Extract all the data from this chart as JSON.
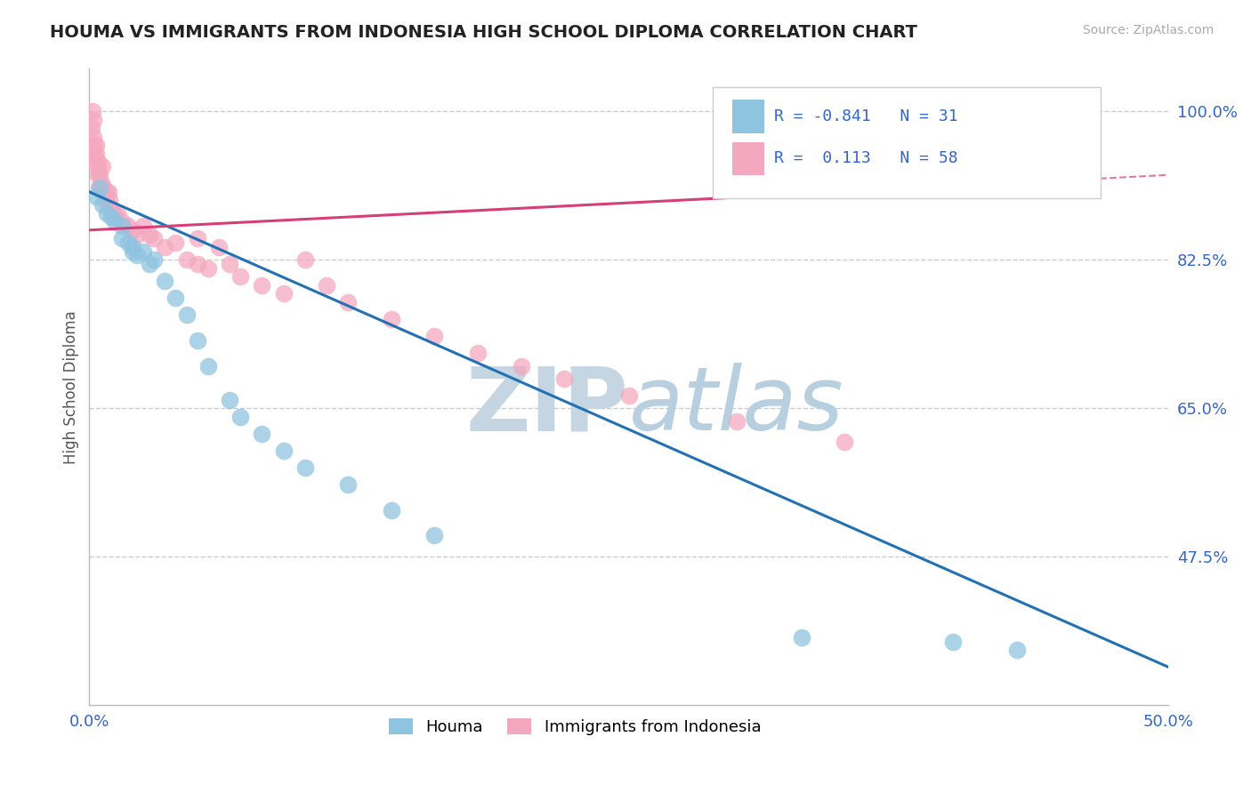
{
  "title": "HOUMA VS IMMIGRANTS FROM INDONESIA HIGH SCHOOL DIPLOMA CORRELATION CHART",
  "source": "Source: ZipAtlas.com",
  "ylabel": "High School Diploma",
  "xlim": [
    0.0,
    50.0
  ],
  "ylim": [
    30.0,
    105.0
  ],
  "ytick_positions": [
    47.5,
    65.0,
    82.5,
    100.0
  ],
  "ytick_labels": [
    "47.5%",
    "65.0%",
    "82.5%",
    "100.0%"
  ],
  "houma_R": -0.841,
  "houma_N": 31,
  "indo_R": 0.113,
  "indo_N": 58,
  "houma_color": "#8fc4e0",
  "indo_color": "#f4a8bf",
  "houma_line_color": "#2171b5",
  "indo_line_color": "#d63e7a",
  "watermark_zip": "ZIP",
  "watermark_atlas": "atlas",
  "watermark_color_zip": "#d0dce8",
  "watermark_color_atlas": "#b8cfe0",
  "houma_x": [
    0.3,
    0.5,
    0.6,
    0.8,
    1.0,
    1.2,
    1.5,
    1.5,
    1.8,
    2.0,
    2.0,
    2.2,
    2.5,
    2.8,
    3.0,
    3.5,
    4.0,
    4.5,
    5.0,
    5.5,
    6.5,
    7.0,
    8.0,
    9.0,
    10.0,
    12.0,
    14.0,
    16.0,
    33.0,
    40.0,
    43.0
  ],
  "houma_y": [
    90.0,
    91.0,
    89.0,
    88.0,
    87.5,
    87.0,
    86.5,
    85.0,
    84.5,
    84.0,
    83.5,
    83.0,
    83.5,
    82.0,
    82.5,
    80.0,
    78.0,
    76.0,
    73.0,
    70.0,
    66.0,
    64.0,
    62.0,
    60.0,
    58.0,
    56.0,
    53.0,
    50.0,
    38.0,
    37.5,
    36.5
  ],
  "indo_x": [
    0.1,
    0.15,
    0.18,
    0.2,
    0.22,
    0.25,
    0.28,
    0.3,
    0.32,
    0.35,
    0.38,
    0.4,
    0.42,
    0.45,
    0.5,
    0.55,
    0.6,
    0.62,
    0.65,
    0.7,
    0.75,
    0.8,
    0.85,
    0.9,
    0.95,
    1.0,
    1.1,
    1.2,
    1.3,
    1.5,
    1.8,
    2.0,
    2.2,
    2.5,
    2.8,
    3.0,
    3.5,
    4.0,
    4.5,
    5.0,
    5.0,
    5.5,
    6.0,
    6.5,
    7.0,
    8.0,
    9.0,
    10.0,
    11.0,
    12.0,
    14.0,
    16.0,
    18.0,
    20.0,
    22.0,
    25.0,
    30.0,
    35.0
  ],
  "indo_y": [
    98.0,
    100.0,
    99.0,
    97.0,
    96.0,
    95.0,
    94.5,
    96.0,
    95.0,
    93.5,
    92.5,
    94.0,
    93.0,
    91.0,
    92.5,
    91.5,
    90.5,
    93.5,
    91.0,
    90.5,
    89.5,
    90.5,
    89.0,
    90.5,
    89.5,
    88.5,
    88.0,
    87.5,
    88.0,
    87.0,
    86.5,
    86.0,
    85.5,
    86.5,
    85.5,
    85.0,
    84.0,
    84.5,
    82.5,
    85.0,
    82.0,
    81.5,
    84.0,
    82.0,
    80.5,
    79.5,
    78.5,
    82.5,
    79.5,
    77.5,
    75.5,
    73.5,
    71.5,
    70.0,
    68.5,
    66.5,
    63.5,
    61.0
  ],
  "houma_line_x0": 0.0,
  "houma_line_y0": 90.5,
  "houma_line_x1": 50.0,
  "houma_line_y1": 34.5,
  "indo_line_x0": 0.0,
  "indo_line_y0": 86.0,
  "indo_line_x1": 35.0,
  "indo_line_y1": 90.5,
  "indo_dash_x0": 35.0,
  "indo_dash_y0": 90.5,
  "indo_dash_x1": 50.0,
  "indo_dash_y1": 92.5
}
